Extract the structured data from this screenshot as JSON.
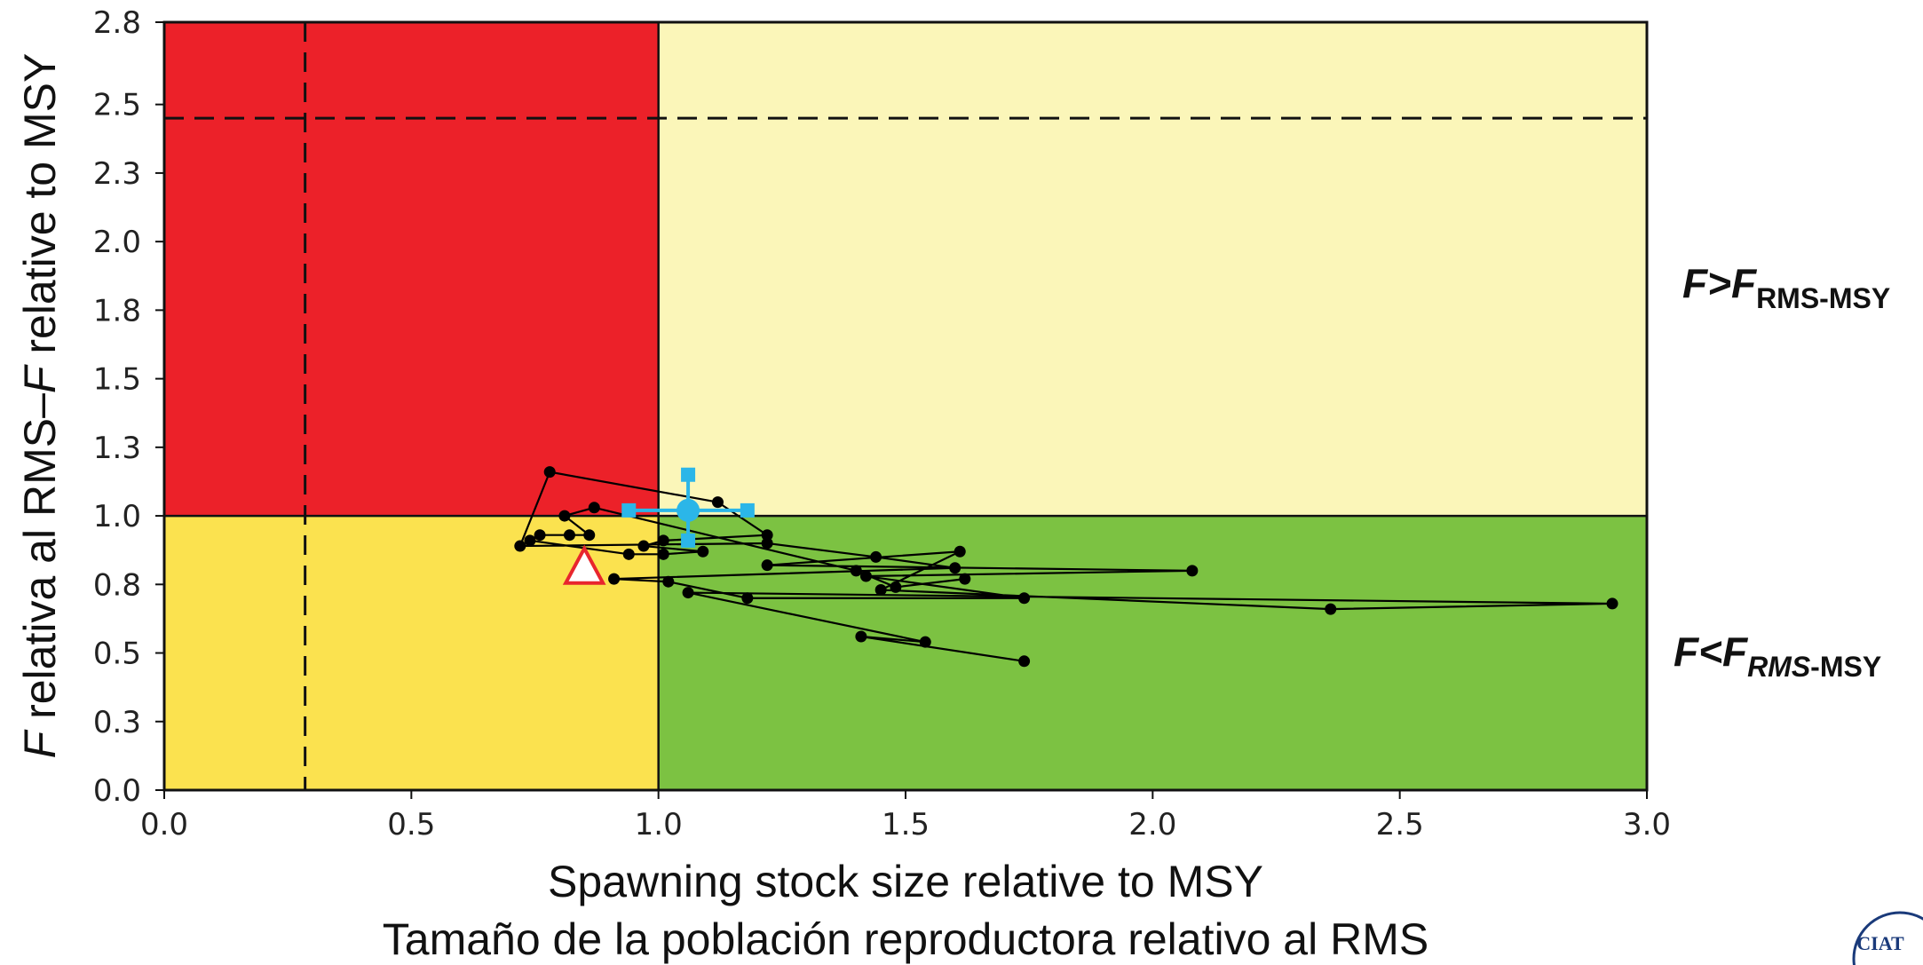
{
  "chart_data": {
    "type": "scatter",
    "title": "",
    "xlabel": "Spawning stock size relative to MSY",
    "xlabel_es": "Tamaño de la población reproductora relativo al RMS",
    "ylabel_parts": [
      "",
      "F",
      " relativa al RMS–",
      "F",
      " relative to MSY"
    ],
    "xlim": [
      0,
      3
    ],
    "ylim": [
      0,
      2.8
    ],
    "x_ticks": [
      "0.0",
      "0.5",
      "1.0",
      "1.5",
      "2.0",
      "2.5",
      "3.0"
    ],
    "y_ticks": [
      {
        "v": 0.0,
        "label": "0.0"
      },
      {
        "v": 0.25,
        "label": "0.3"
      },
      {
        "v": 0.5,
        "label": "0.5"
      },
      {
        "v": 0.75,
        "label": "0.8"
      },
      {
        "v": 1.0,
        "label": "1.0"
      },
      {
        "v": 1.25,
        "label": "1.3"
      },
      {
        "v": 1.5,
        "label": "1.5"
      },
      {
        "v": 1.75,
        "label": "1.8"
      },
      {
        "v": 2.0,
        "label": "2.0"
      },
      {
        "v": 2.25,
        "label": "2.3"
      },
      {
        "v": 2.5,
        "label": "2.5"
      },
      {
        "v": 2.8,
        "label": "2.8"
      }
    ],
    "zones": [
      {
        "name": "overfished-overfishing",
        "x": [
          0,
          1
        ],
        "y": [
          1,
          2.8
        ],
        "color": "#ec2129"
      },
      {
        "name": "healthy-overfishing",
        "x": [
          1,
          3
        ],
        "y": [
          1,
          2.8
        ],
        "color": "#fbf6b9"
      },
      {
        "name": "overfished-no-overfishing",
        "x": [
          0,
          1
        ],
        "y": [
          0,
          1
        ],
        "color": "#fbe24f"
      },
      {
        "name": "healthy",
        "x": [
          1,
          3
        ],
        "y": [
          0,
          1
        ],
        "color": "#7cc242"
      }
    ],
    "reference_lines": {
      "limit_x": 0.285,
      "limit_y": 2.45
    },
    "trajectory": [
      {
        "x": 1.74,
        "y": 0.47
      },
      {
        "x": 1.41,
        "y": 0.56
      },
      {
        "x": 1.54,
        "y": 0.54
      },
      {
        "x": 1.06,
        "y": 0.72
      },
      {
        "x": 2.93,
        "y": 0.68
      },
      {
        "x": 2.36,
        "y": 0.66
      },
      {
        "x": 1.45,
        "y": 0.73
      },
      {
        "x": 1.61,
        "y": 0.87
      },
      {
        "x": 1.22,
        "y": 0.82
      },
      {
        "x": 2.08,
        "y": 0.8
      },
      {
        "x": 1.42,
        "y": 0.78
      },
      {
        "x": 1.74,
        "y": 0.7
      },
      {
        "x": 1.18,
        "y": 0.7
      },
      {
        "x": 1.02,
        "y": 0.76
      },
      {
        "x": 0.91,
        "y": 0.77
      },
      {
        "x": 1.6,
        "y": 0.81
      },
      {
        "x": 1.44,
        "y": 0.85
      },
      {
        "x": 1.22,
        "y": 0.9
      },
      {
        "x": 0.72,
        "y": 0.89
      },
      {
        "x": 0.78,
        "y": 1.16
      },
      {
        "x": 1.12,
        "y": 1.05
      },
      {
        "x": 1.22,
        "y": 0.93
      },
      {
        "x": 1.01,
        "y": 0.91
      },
      {
        "x": 0.97,
        "y": 0.89
      },
      {
        "x": 1.09,
        "y": 0.87
      },
      {
        "x": 1.01,
        "y": 0.86
      },
      {
        "x": 0.94,
        "y": 0.86
      },
      {
        "x": 0.74,
        "y": 0.91
      },
      {
        "x": 0.76,
        "y": 0.93
      },
      {
        "x": 0.82,
        "y": 0.93
      },
      {
        "x": 0.86,
        "y": 0.93
      },
      {
        "x": 0.81,
        "y": 1.0
      },
      {
        "x": 0.87,
        "y": 1.03
      },
      {
        "x": 1.4,
        "y": 0.8
      },
      {
        "x": 1.48,
        "y": 0.74
      },
      {
        "x": 1.62,
        "y": 0.77
      }
    ],
    "current": {
      "x": 1.06,
      "y": 1.02,
      "x_err": [
        0.94,
        1.18
      ],
      "y_err": [
        0.91,
        1.15
      ]
    },
    "reference_point": {
      "x": 0.85,
      "y": 0.81
    },
    "zone_labels": {
      "upper": {
        "main": "F>F",
        "sub": "RMS-MSY"
      },
      "lower": {
        "main": "F<F",
        "sub_italic": "RMS",
        "sub": "-MSY"
      }
    },
    "colors": {
      "trajectory": "#000000",
      "current": "#2bb6e8",
      "reference_triangle": "#e8262d",
      "dash": "#111111"
    }
  },
  "logo": {
    "text": "CIAT"
  }
}
